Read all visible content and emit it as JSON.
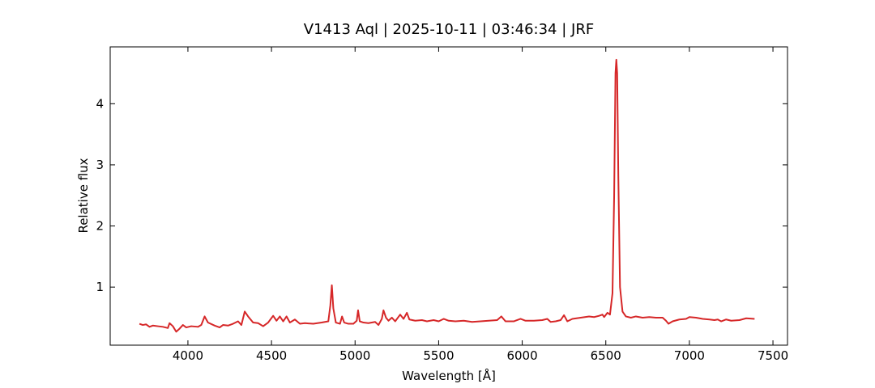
{
  "chart_data": {
    "type": "line",
    "title": "V1413 Aql | 2025-10-11 | 03:46:34 | JRF",
    "x_label": "Wavelength [Å]",
    "y_label": "Relative flux",
    "xlim": [
      3535,
      7587
    ],
    "ylim": [
      0.05,
      4.93
    ],
    "xticks": [
      4000,
      4500,
      5000,
      5500,
      6000,
      6500,
      7000,
      7500
    ],
    "yticks": [
      1,
      2,
      3,
      4
    ],
    "series": [
      {
        "name": "V1413 Aql",
        "color": "#d62728",
        "x": [
          3710,
          3730,
          3750,
          3770,
          3790,
          3820,
          3850,
          3880,
          3890,
          3910,
          3930,
          3950,
          3970,
          3990,
          4020,
          4060,
          4080,
          4100,
          4120,
          4160,
          4190,
          4210,
          4240,
          4270,
          4300,
          4320,
          4340,
          4360,
          4390,
          4420,
          4450,
          4480,
          4510,
          4530,
          4550,
          4570,
          4590,
          4610,
          4640,
          4670,
          4700,
          4750,
          4800,
          4840,
          4852,
          4861,
          4870,
          4885,
          4910,
          4922,
          4935,
          4960,
          4990,
          5010,
          5018,
          5028,
          5050,
          5080,
          5120,
          5140,
          5160,
          5170,
          5185,
          5200,
          5220,
          5240,
          5270,
          5290,
          5310,
          5325,
          5360,
          5400,
          5430,
          5470,
          5500,
          5530,
          5560,
          5600,
          5650,
          5700,
          5750,
          5800,
          5850,
          5875,
          5900,
          5950,
          5990,
          6020,
          6070,
          6120,
          6150,
          6170,
          6200,
          6230,
          6250,
          6270,
          6300,
          6350,
          6400,
          6430,
          6460,
          6480,
          6490,
          6510,
          6525,
          6540,
          6550,
          6558,
          6563,
          6568,
          6575,
          6585,
          6600,
          6620,
          6650,
          6680,
          6720,
          6760,
          6800,
          6840,
          6860,
          6875,
          6900,
          6940,
          6980,
          7000,
          7040,
          7080,
          7120,
          7150,
          7170,
          7190,
          7220,
          7250,
          7300,
          7340,
          7390
        ],
        "values": [
          0.4,
          0.38,
          0.39,
          0.35,
          0.37,
          0.36,
          0.35,
          0.33,
          0.41,
          0.36,
          0.27,
          0.32,
          0.38,
          0.34,
          0.36,
          0.35,
          0.38,
          0.52,
          0.42,
          0.37,
          0.34,
          0.38,
          0.37,
          0.4,
          0.44,
          0.38,
          0.6,
          0.52,
          0.42,
          0.41,
          0.36,
          0.42,
          0.53,
          0.45,
          0.52,
          0.44,
          0.52,
          0.42,
          0.47,
          0.4,
          0.41,
          0.4,
          0.42,
          0.44,
          0.7,
          1.03,
          0.65,
          0.42,
          0.4,
          0.52,
          0.42,
          0.4,
          0.4,
          0.45,
          0.62,
          0.44,
          0.42,
          0.41,
          0.43,
          0.38,
          0.48,
          0.62,
          0.5,
          0.45,
          0.5,
          0.44,
          0.55,
          0.48,
          0.58,
          0.47,
          0.45,
          0.46,
          0.44,
          0.46,
          0.44,
          0.48,
          0.45,
          0.44,
          0.45,
          0.43,
          0.44,
          0.45,
          0.46,
          0.52,
          0.44,
          0.44,
          0.48,
          0.45,
          0.45,
          0.46,
          0.48,
          0.43,
          0.44,
          0.46,
          0.54,
          0.44,
          0.48,
          0.5,
          0.52,
          0.51,
          0.53,
          0.55,
          0.51,
          0.58,
          0.55,
          0.9,
          2.5,
          4.5,
          4.72,
          4.5,
          2.8,
          1.0,
          0.6,
          0.52,
          0.5,
          0.52,
          0.5,
          0.51,
          0.5,
          0.5,
          0.45,
          0.4,
          0.44,
          0.47,
          0.48,
          0.51,
          0.5,
          0.48,
          0.47,
          0.46,
          0.47,
          0.44,
          0.47,
          0.45,
          0.46,
          0.49,
          0.48
        ]
      }
    ]
  }
}
